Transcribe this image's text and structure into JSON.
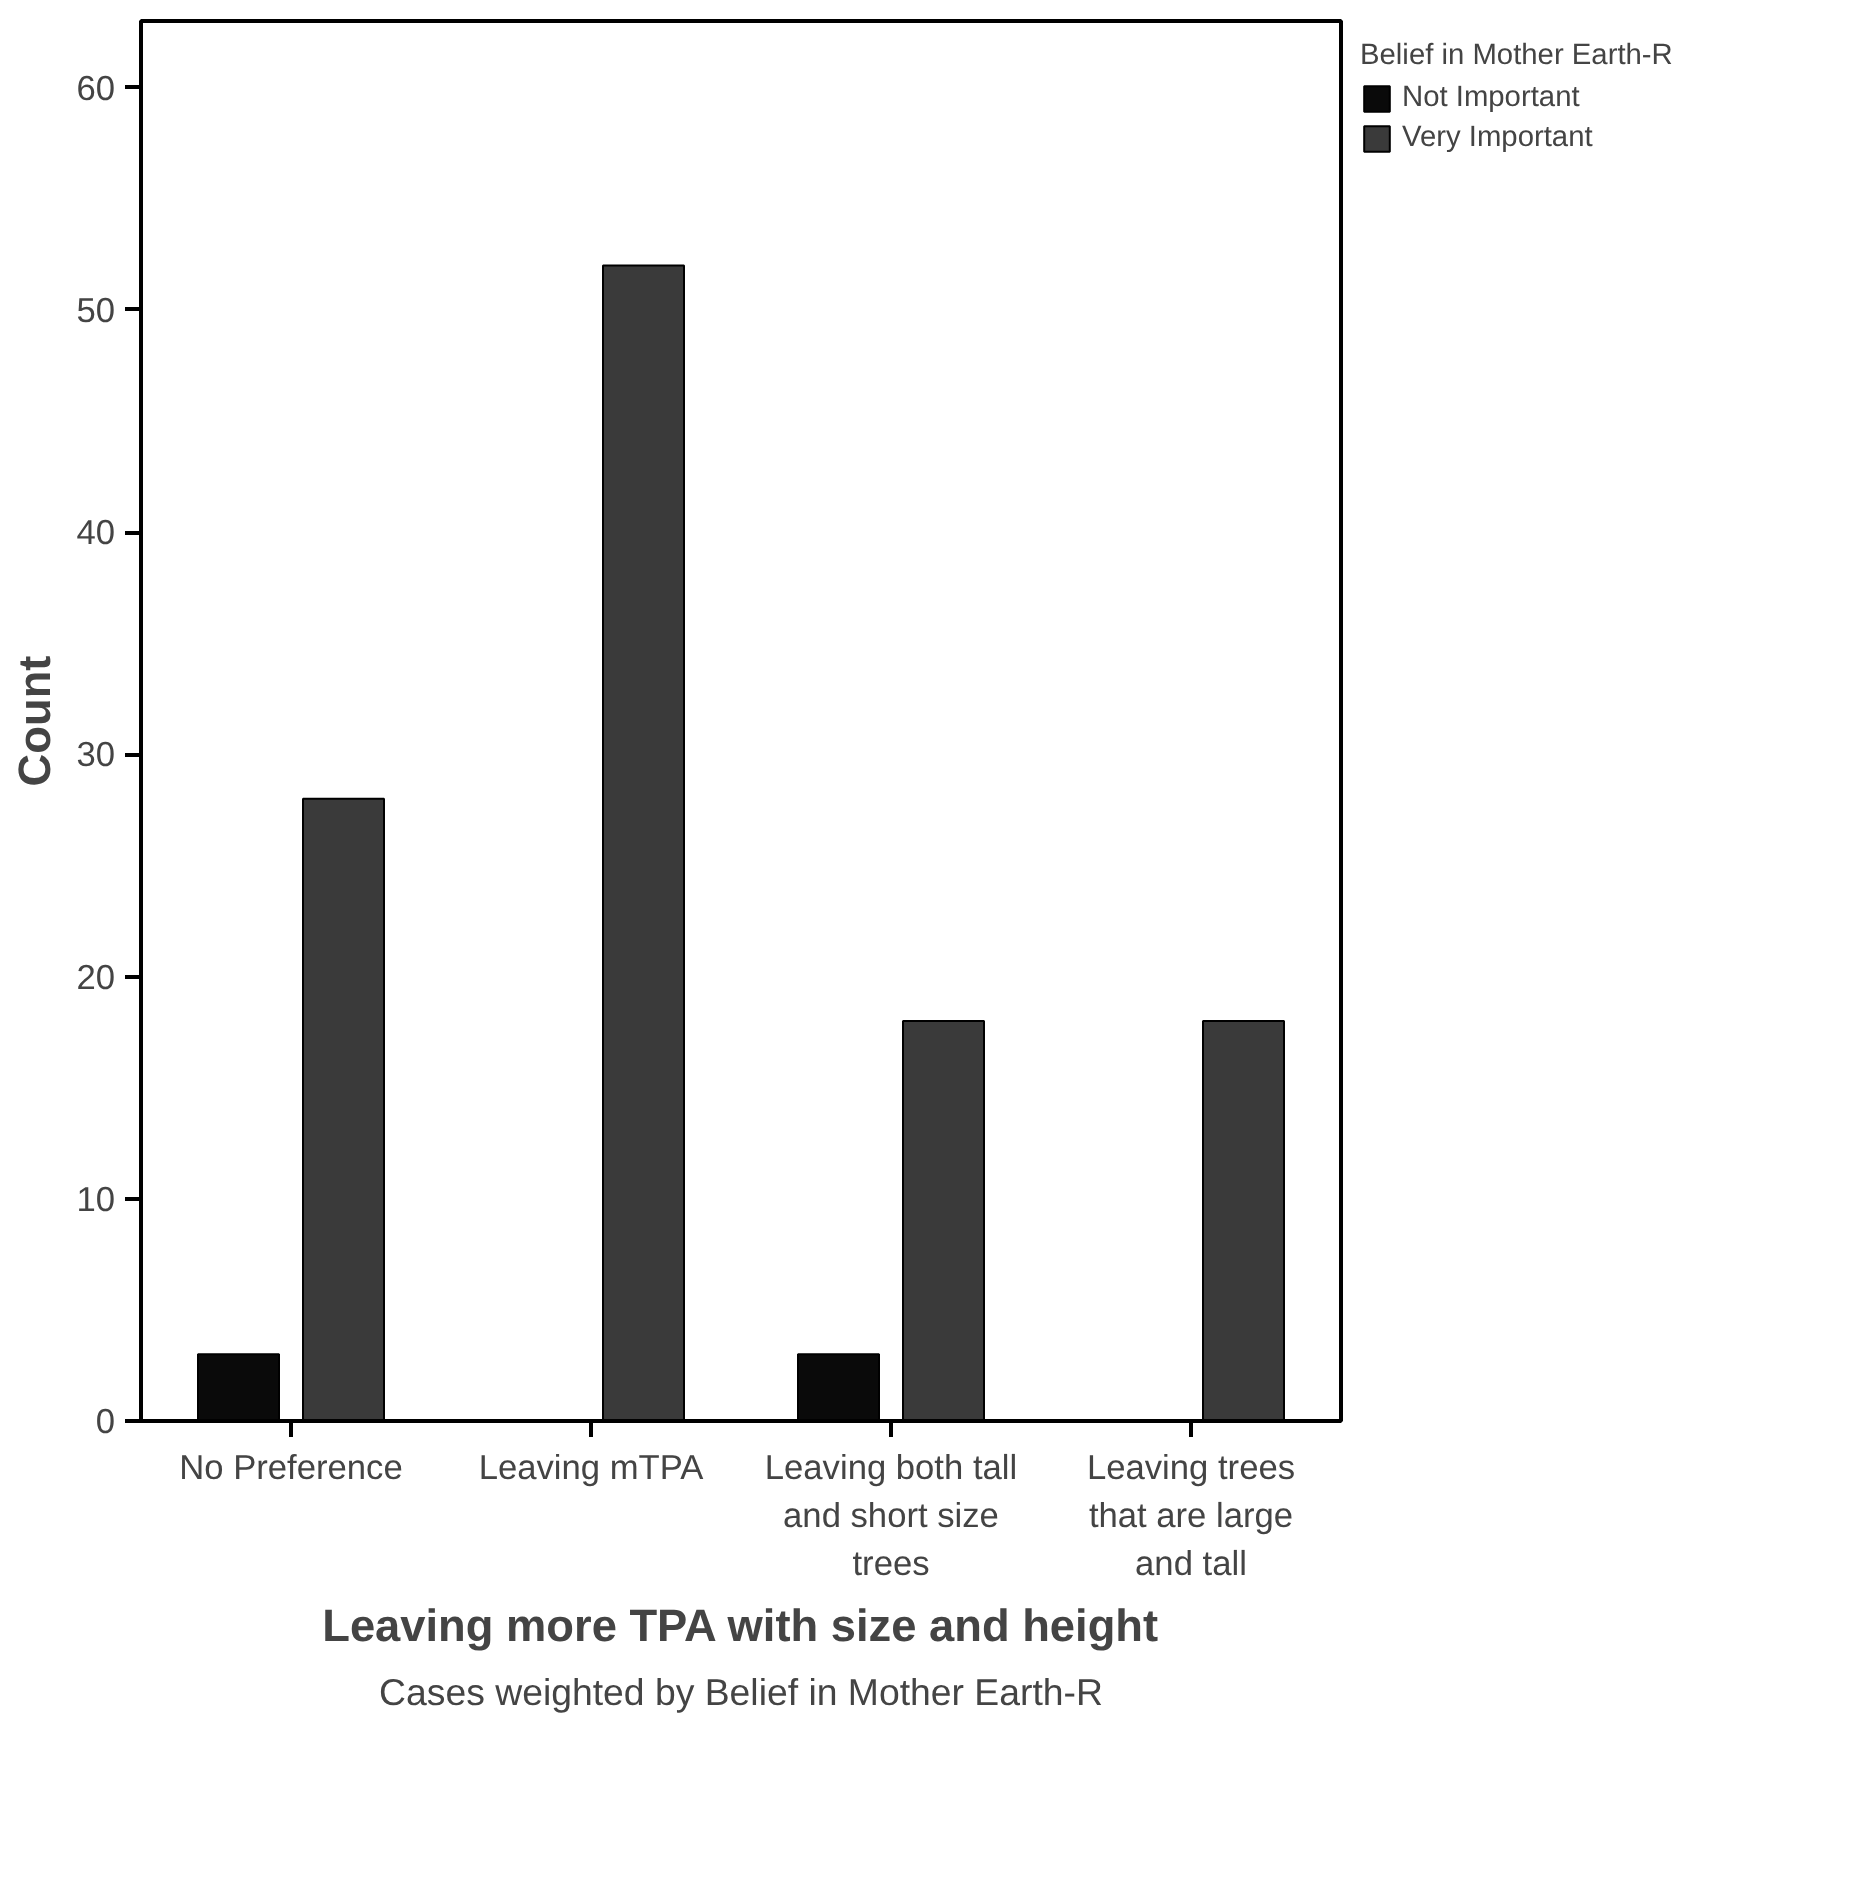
{
  "chart_data": {
    "type": "bar",
    "xlabel": "Leaving more TPA with size and height",
    "ylabel": "Count",
    "legend_title": "Belief in Mother Earth-R",
    "categories": [
      "No Preference",
      "Leaving mTPA",
      "Leaving both tall and short size trees",
      "Leaving trees that are large and tall"
    ],
    "series": [
      {
        "name": "Not Important",
        "color": "#0a0a0a",
        "values": [
          3,
          null,
          3,
          null
        ]
      },
      {
        "name": "Very Important",
        "color": "#3a3a3a",
        "values": [
          28,
          52,
          18,
          18
        ]
      }
    ],
    "ylim": [
      0,
      63
    ],
    "yticks": [
      0,
      10,
      20,
      30,
      40,
      50,
      60
    ],
    "grid": false,
    "legend": "right",
    "annotations": [
      "Cases weighted by Belief in Mother Earth-R"
    ]
  }
}
